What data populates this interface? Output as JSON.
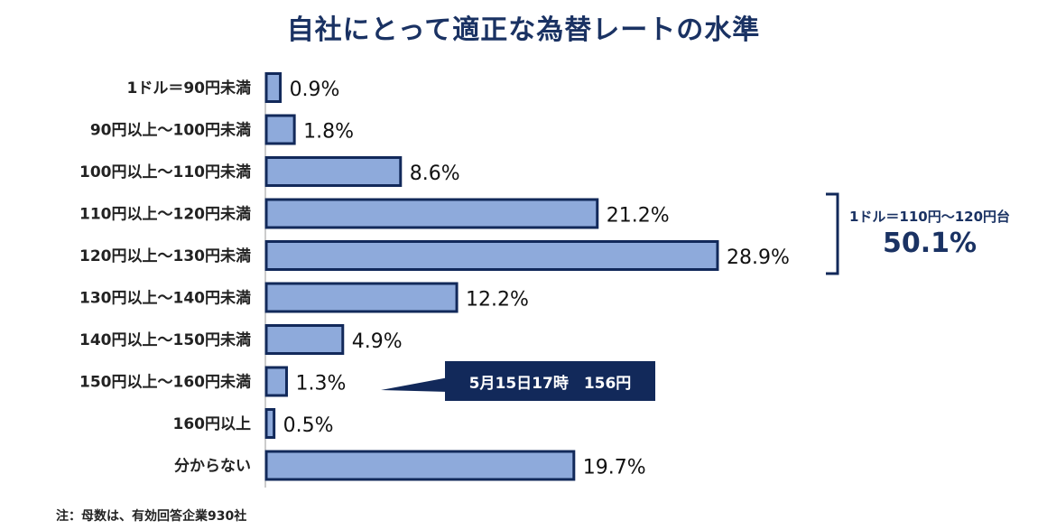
{
  "chart_data": {
    "type": "bar",
    "orientation": "horizontal",
    "title": "自社にとって適正な為替レートの水準",
    "categories": [
      "1ドル＝90円未満",
      "90円以上～100円未満",
      "100円以上～110円未満",
      "110円以上～120円未満",
      "120円以上～130円未満",
      "130円以上～140円未満",
      "140円以上～150円未満",
      "150円以上～160円未満",
      "160円以上",
      "分からない"
    ],
    "values": [
      0.9,
      1.8,
      8.6,
      21.2,
      28.9,
      12.2,
      4.9,
      1.3,
      0.5,
      19.7
    ],
    "value_labels": [
      "0.9%",
      "1.8%",
      "8.6%",
      "21.2%",
      "28.9%",
      "12.2%",
      "4.9%",
      "1.3%",
      "0.5%",
      "19.7%"
    ],
    "unit": "%",
    "bar_color": "#8eaadb",
    "bar_border_color": "#12295a",
    "grid": false,
    "annotations": {
      "bracket": {
        "label": "1ドル＝110円～120円台",
        "value": "50.1%",
        "categories": [
          3,
          4
        ]
      },
      "callout": {
        "text": "5月15日17時　156円",
        "category": 7
      }
    }
  },
  "note": "注：母数は、有効回答企業930社"
}
